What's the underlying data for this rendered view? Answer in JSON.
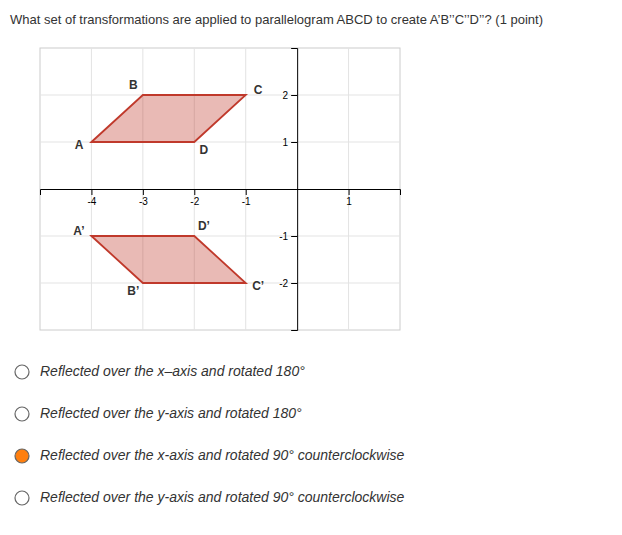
{
  "chart_data": {
    "type": "polygon",
    "title": "What set of transformations are applied to parallelogram ABCD to create A’B’’C’’D’’? (1 point)",
    "xlim": [
      -5.0,
      2.0
    ],
    "ylim": [
      -3.0,
      3.0
    ],
    "xticks": [
      -4,
      -3,
      -2,
      -1,
      1
    ],
    "yticks": [
      -2,
      -1,
      1,
      2
    ],
    "grid": true,
    "series": [
      {
        "labels": [
          "A",
          "B",
          "C",
          "D"
        ],
        "x": [
          -4,
          -3,
          -1,
          -2
        ],
        "values": [
          1,
          2,
          2,
          1
        ],
        "color": "#c0392b"
      },
      {
        "labels": [
          "A’",
          "B’",
          "C’",
          "D’"
        ],
        "x": [
          -4,
          -3,
          -1,
          -2
        ],
        "values": [
          -1,
          -2,
          -2,
          -1
        ],
        "color": "#c0392b"
      }
    ],
    "annotations": [
      {
        "text": "Reflected over the x–axis and rotated 180°",
        "selected": false
      },
      {
        "text": "Reflected over the y-axis and rotated 180°",
        "selected": false
      },
      {
        "text": "Reflected over the x-axis and rotated 90° counterclockwise",
        "selected": true
      },
      {
        "text": "Reflected over the y-axis and rotated 90° counterclockwise",
        "selected": false
      }
    ]
  }
}
